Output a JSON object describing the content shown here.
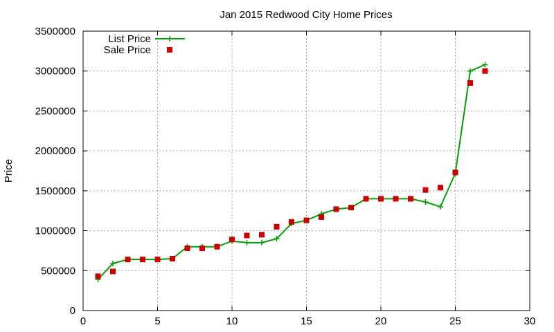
{
  "chart_data": {
    "type": "line",
    "title": "Jan 2015 Redwood City Home Prices",
    "xlabel": "",
    "ylabel": "Price",
    "xlim": [
      0,
      30
    ],
    "ylim": [
      0,
      3500000
    ],
    "xticks": [
      0,
      5,
      10,
      15,
      20,
      25,
      30
    ],
    "yticks": [
      0,
      500000,
      1000000,
      1500000,
      2000000,
      2500000,
      3000000,
      3500000
    ],
    "grid": true,
    "legend_position": "top-left",
    "series": [
      {
        "name": "List Price",
        "style": "line-with-plus-markers",
        "color": "#00a000",
        "x": [
          1,
          2,
          3,
          4,
          5,
          6,
          7,
          8,
          9,
          10,
          11,
          12,
          13,
          14,
          15,
          16,
          17,
          18,
          19,
          20,
          21,
          22,
          23,
          24,
          25,
          26,
          27
        ],
        "values": [
          390000,
          590000,
          640000,
          640000,
          640000,
          650000,
          800000,
          800000,
          800000,
          870000,
          850000,
          850000,
          900000,
          1090000,
          1130000,
          1210000,
          1270000,
          1290000,
          1400000,
          1400000,
          1400000,
          1400000,
          1360000,
          1300000,
          1720000,
          3000000,
          3080000
        ]
      },
      {
        "name": "Sale Price",
        "style": "square-markers",
        "color": "#cc0000",
        "x": [
          1,
          2,
          3,
          4,
          5,
          6,
          7,
          8,
          9,
          10,
          11,
          12,
          13,
          14,
          15,
          16,
          17,
          18,
          19,
          20,
          21,
          22,
          23,
          24,
          25,
          26,
          27
        ],
        "values": [
          430000,
          490000,
          640000,
          640000,
          640000,
          650000,
          780000,
          780000,
          800000,
          890000,
          940000,
          950000,
          1050000,
          1110000,
          1130000,
          1170000,
          1270000,
          1290000,
          1400000,
          1400000,
          1400000,
          1400000,
          1510000,
          1540000,
          1730000,
          2850000,
          3000000
        ]
      }
    ]
  }
}
